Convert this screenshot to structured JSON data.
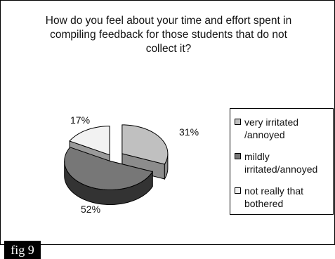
{
  "chart_data": {
    "type": "pie",
    "title_lines": [
      "How  do you feel about your time and effort spent in",
      "compiling feedback for those students that do not",
      "collect it?"
    ],
    "slices": [
      {
        "label": "very irritated /annoyed",
        "legend_lines": [
          "very irritated",
          "/annoyed"
        ],
        "value": 31,
        "pct_label": "31%",
        "color": "#c0c0c0",
        "side": "#8c8c8c"
      },
      {
        "label": "mildly irritated/annoyed",
        "legend_lines": [
          "mildly",
          "irritated/annoyed"
        ],
        "value": 52,
        "pct_label": "52%",
        "color": "#777777",
        "side": "#333333"
      },
      {
        "label": "not really that bothered",
        "legend_lines": [
          "not really that",
          "bothered"
        ],
        "value": 17,
        "pct_label": "17%",
        "color": "#f2f2f2",
        "side": "#9a9a9a"
      }
    ],
    "legend_position": "right",
    "style": "3d-exploded"
  },
  "figure_label": "fig 9"
}
